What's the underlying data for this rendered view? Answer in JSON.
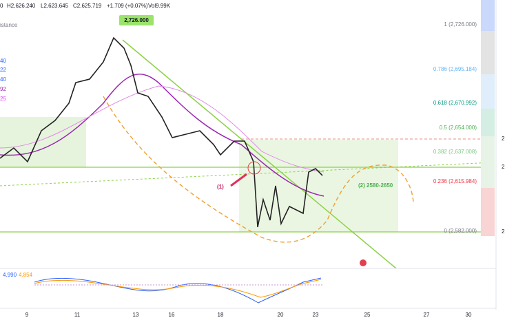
{
  "header": {
    "prefix": "0",
    "high": "H2,626.240",
    "low": "L2,623.645",
    "close": "C2,625.719",
    "change": "+1.709 (+0.07%)",
    "volume": "Vol9.99K"
  },
  "legend": {
    "indicator": "istance",
    "values": [
      "40",
      "22",
      "40",
      "92",
      "25"
    ]
  },
  "annotations": {
    "peak": "2,726.000",
    "point_one": "(1)",
    "zone": "(2) 2580-2650"
  },
  "fib_levels": [
    "1 (2,726.000)",
    "0.786 (2,695.184)",
    "0.618 (2,670.992)",
    "0.5 (2,654.000)",
    "0.382 (2,637.008)",
    "0.236 (2,615.984)",
    "0 (2,582.000)"
  ],
  "price_axis": [
    "2",
    "2",
    "2"
  ],
  "oscillator": {
    "value_a": "4.990",
    "value_b": "4.854"
  },
  "time_axis": [
    "9",
    "11",
    "13",
    "16",
    "18",
    "20",
    "23",
    "25",
    "27",
    "30"
  ]
}
